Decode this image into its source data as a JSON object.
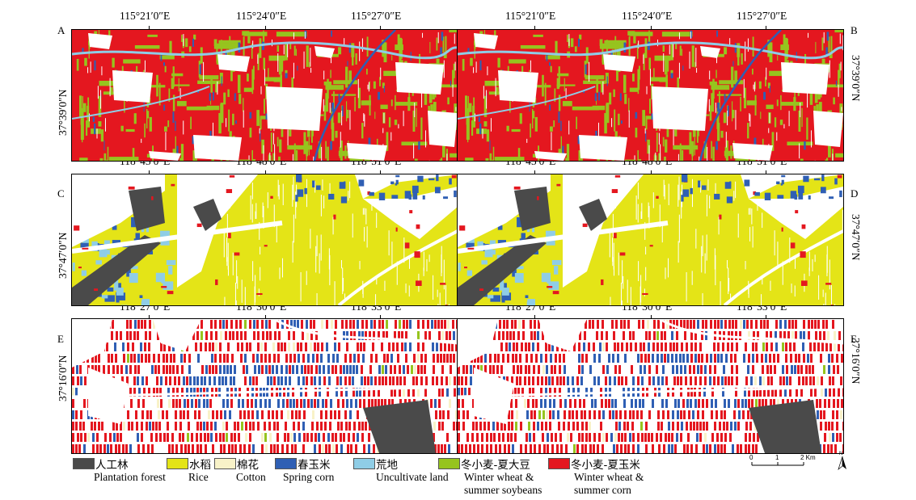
{
  "panel_labels": [
    "A",
    "B",
    "C",
    "D",
    "E",
    "F"
  ],
  "rows": [
    {
      "lon_labels": [
        "115°21′0″E",
        "115°24′0″E",
        "115°27′0″E"
      ],
      "lat_label": "37°39′0″N"
    },
    {
      "lon_labels": [
        "118°45′0″E",
        "118°48′0″E",
        "118°51′0″E"
      ],
      "lat_label": "37°47′0″N"
    },
    {
      "lon_labels": [
        "118°27′0″E",
        "118°30′0″E",
        "118°33′0″E"
      ],
      "lat_label": "37°16′0″N"
    }
  ],
  "legend": [
    {
      "zh": "人工林",
      "en": "Plantation forest",
      "color": "#4a4a4a"
    },
    {
      "zh": "水稻",
      "en": "Rice",
      "color": "#e4e417"
    },
    {
      "zh": "棉花",
      "en": "Cotton",
      "color": "#f8f2c8"
    },
    {
      "zh": "春玉米",
      "en": "Spring corn",
      "color": "#2f5fb4"
    },
    {
      "zh": "荒地",
      "en": "Uncultivate land",
      "color": "#8fcde6"
    },
    {
      "zh": "冬小麦-夏大豆",
      "en": "Winter wheat & summer soybeans",
      "color": "#96c41e"
    },
    {
      "zh": "冬小麦-夏玉米",
      "en": "Winter wheat & summer corn",
      "color": "#e4171f"
    }
  ],
  "scale_bar": {
    "ticks": [
      "0",
      "1",
      "2 Km"
    ]
  },
  "north_arrow": {
    "letter": "N"
  }
}
